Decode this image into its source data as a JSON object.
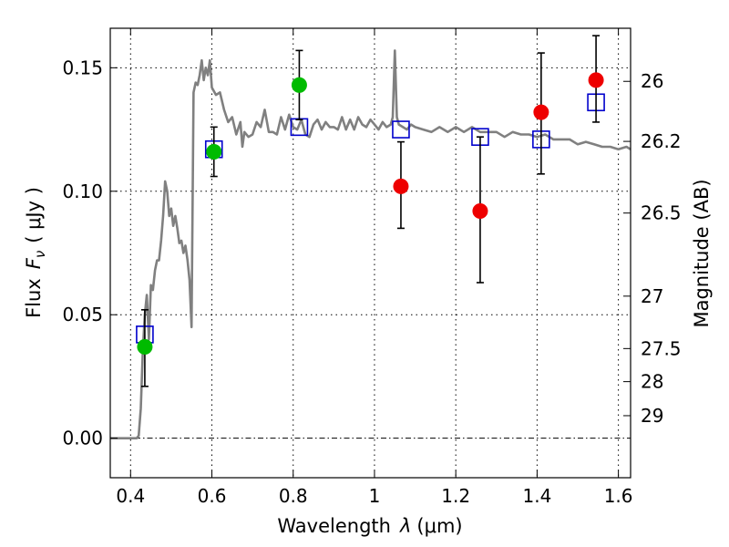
{
  "chart_data": {
    "type": "scatter",
    "xlabel": "Wavelength",
    "xlabel_symbol": "λ",
    "xlabel_unit": "(μm)",
    "ylabel": "Flux",
    "ylabel_symbol": "F",
    "ylabel_subscript": "ν",
    "ylabel_unit": "( μJy )",
    "y2label": "Magnitude (AB)",
    "xlim": [
      0.35,
      1.63
    ],
    "ylim": [
      -0.016,
      0.166
    ],
    "grid": true,
    "x_ticks": [
      0.4,
      0.6,
      0.8,
      1.0,
      1.2,
      1.4,
      1.6
    ],
    "x_tick_labels": [
      "0.4",
      "0.6",
      "0.8",
      "1",
      "1.2",
      "1.4",
      "1.6"
    ],
    "y_ticks": [
      0.0,
      0.05,
      0.1,
      0.15
    ],
    "y_tick_labels": [
      "0.00",
      "0.05",
      "0.10",
      "0.15"
    ],
    "y2_ticks": [
      26,
      26.2,
      26.5,
      27,
      27.5,
      28,
      29
    ],
    "y2_tick_labels": [
      "26",
      "26.2",
      "26.5",
      "27",
      "27.5",
      "28",
      "29"
    ],
    "series": [
      {
        "kind": "line",
        "color": "#808080",
        "x": [
          0.35,
          0.39,
          0.4,
          0.41,
          0.415,
          0.42,
          0.425,
          0.43,
          0.435,
          0.44,
          0.445,
          0.45,
          0.455,
          0.46,
          0.465,
          0.47,
          0.475,
          0.48,
          0.485,
          0.49,
          0.495,
          0.5,
          0.505,
          0.51,
          0.515,
          0.52,
          0.525,
          0.53,
          0.535,
          0.54,
          0.545,
          0.55,
          0.555,
          0.56,
          0.565,
          0.57,
          0.575,
          0.58,
          0.585,
          0.59,
          0.595,
          0.6,
          0.61,
          0.62,
          0.63,
          0.64,
          0.65,
          0.66,
          0.67,
          0.675,
          0.68,
          0.69,
          0.7,
          0.71,
          0.72,
          0.73,
          0.74,
          0.75,
          0.76,
          0.77,
          0.78,
          0.79,
          0.8,
          0.81,
          0.82,
          0.83,
          0.84,
          0.85,
          0.86,
          0.87,
          0.88,
          0.89,
          0.9,
          0.91,
          0.92,
          0.93,
          0.94,
          0.95,
          0.96,
          0.97,
          0.98,
          0.99,
          1.0,
          1.01,
          1.02,
          1.03,
          1.04,
          1.045,
          1.05,
          1.055,
          1.06,
          1.07,
          1.08,
          1.09,
          1.1,
          1.12,
          1.14,
          1.16,
          1.18,
          1.2,
          1.22,
          1.24,
          1.26,
          1.28,
          1.3,
          1.32,
          1.34,
          1.36,
          1.38,
          1.4,
          1.42,
          1.44,
          1.46,
          1.48,
          1.5,
          1.52,
          1.54,
          1.56,
          1.58,
          1.6,
          1.62,
          1.63
        ],
        "y": [
          0.0,
          0.0,
          0.0,
          0.0,
          0.0,
          0.001,
          0.012,
          0.035,
          0.05,
          0.058,
          0.04,
          0.062,
          0.06,
          0.068,
          0.072,
          0.072,
          0.08,
          0.09,
          0.104,
          0.1,
          0.09,
          0.093,
          0.086,
          0.09,
          0.085,
          0.079,
          0.08,
          0.075,
          0.078,
          0.072,
          0.064,
          0.045,
          0.14,
          0.144,
          0.143,
          0.147,
          0.153,
          0.145,
          0.15,
          0.147,
          0.153,
          0.142,
          0.139,
          0.14,
          0.133,
          0.128,
          0.13,
          0.123,
          0.128,
          0.118,
          0.124,
          0.122,
          0.123,
          0.128,
          0.126,
          0.133,
          0.124,
          0.124,
          0.123,
          0.13,
          0.125,
          0.131,
          0.126,
          0.125,
          0.129,
          0.123,
          0.122,
          0.127,
          0.129,
          0.125,
          0.128,
          0.126,
          0.126,
          0.125,
          0.13,
          0.125,
          0.129,
          0.125,
          0.13,
          0.127,
          0.126,
          0.129,
          0.127,
          0.125,
          0.128,
          0.126,
          0.127,
          0.13,
          0.157,
          0.13,
          0.127,
          0.126,
          0.125,
          0.127,
          0.126,
          0.125,
          0.124,
          0.126,
          0.124,
          0.126,
          0.124,
          0.126,
          0.124,
          0.124,
          0.124,
          0.122,
          0.124,
          0.123,
          0.123,
          0.122,
          0.123,
          0.121,
          0.121,
          0.121,
          0.119,
          0.12,
          0.119,
          0.118,
          0.118,
          0.117,
          0.118,
          0.117
        ]
      },
      {
        "kind": "open-squares",
        "color": "#0000cc",
        "x": [
          0.435,
          0.605,
          0.815,
          1.065,
          1.26,
          1.41,
          1.545
        ],
        "y": [
          0.042,
          0.117,
          0.126,
          0.125,
          0.122,
          0.121,
          0.136
        ]
      },
      {
        "kind": "points-with-errorbars",
        "color": "#00bb00",
        "x": [
          0.435,
          0.605,
          0.815
        ],
        "y": [
          0.037,
          0.116,
          0.143
        ],
        "yerr_low": [
          0.021,
          0.106,
          0.129
        ],
        "yerr_high": [
          0.052,
          0.126,
          0.157
        ]
      },
      {
        "kind": "points-with-errorbars",
        "color": "#ee0000",
        "x": [
          1.065,
          1.26,
          1.41,
          1.545
        ],
        "y": [
          0.102,
          0.092,
          0.132,
          0.145
        ],
        "yerr_low": [
          0.085,
          0.063,
          0.107,
          0.128
        ],
        "yerr_high": [
          0.12,
          0.122,
          0.156,
          0.163
        ]
      }
    ]
  }
}
